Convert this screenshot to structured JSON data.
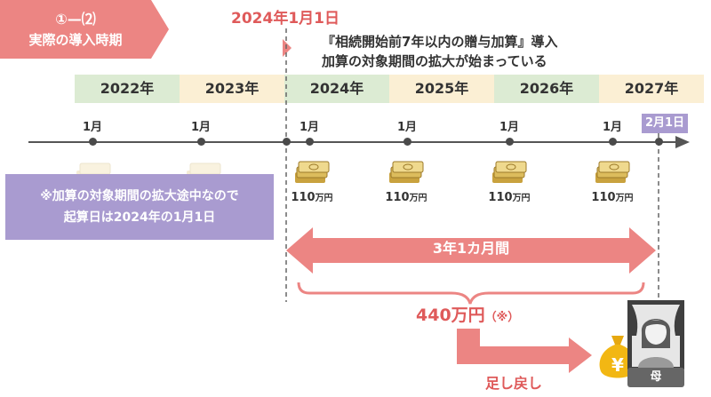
{
  "badge": {
    "number": "①—⑵",
    "title": "実際の導入時期"
  },
  "start_date": "2024年1月1日",
  "note": {
    "line1": "『相続開始前7年以内の贈与加算』導入",
    "line2": "加算の対象期間の拡大が始まっている"
  },
  "years": [
    "2022年",
    "2023年",
    "2024年",
    "2025年",
    "2026年",
    "2027年"
  ],
  "month_label": "1月",
  "end_month_label": "2月1日",
  "gift_amount": "110",
  "gift_unit": "万円",
  "explanation": {
    "line1": "※加算の対象期間の拡大途中なので",
    "line2": "起算日は2024年の1月1日"
  },
  "period": "3年1カ月間",
  "total": {
    "value": "440万円",
    "note": "（※）"
  },
  "return_label": "足し戻し",
  "mother_label": "母",
  "colors": {
    "accent_red": "#ec8583",
    "purple": "#a99bd0",
    "green": "#dcebd3",
    "cream": "#fbefd4"
  }
}
